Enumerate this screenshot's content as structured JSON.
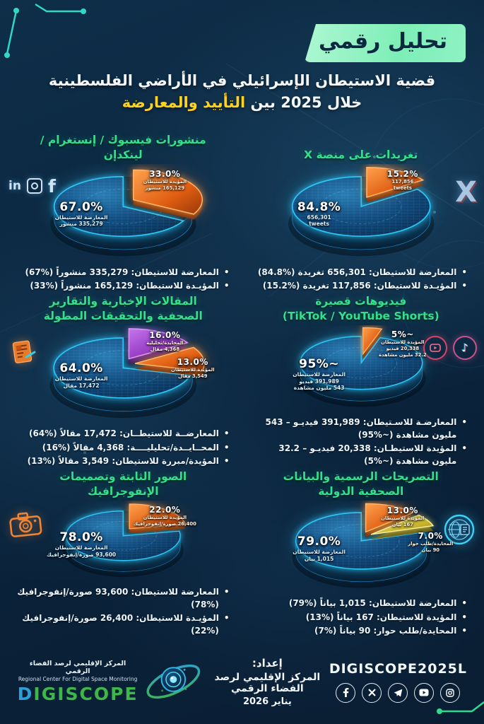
{
  "header": {
    "badge": "تحليل رقمي",
    "title_line1": "قضية الاستيطان الإسرائيلي في الأراضي الفلسطينية",
    "title_line2_prefix": "خلال 2025 بين ",
    "title_line2_highlight": "التأييد والمعارضة"
  },
  "colors": {
    "background": "#0d2b44",
    "accent_green": "#35e08d",
    "highlight_yellow": "#ffd21f",
    "pie_blue": "#2ec5f5",
    "pie_orange": "#ff8a2e",
    "pie_purple": "#b55ce6",
    "pie_yellow": "#e9de52"
  },
  "chart_data": [
    {
      "id": "x-tweets",
      "type": "pie",
      "title": "تغريدات على منصة X",
      "icon": "x-icon",
      "slices": [
        {
          "name": "المعارضة للاستيطان",
          "value": 656301,
          "pct": 84.8,
          "color": "blue",
          "label": "84.8%",
          "lines": [
            "656,301",
            "tweets"
          ]
        },
        {
          "name": "المؤيدة للاستيطان",
          "value": 117856,
          "pct": 15.2,
          "color": "orange",
          "label": "15.2%",
          "lines": [
            "117,856",
            "tweets"
          ]
        }
      ],
      "bullets": [
        "المعارضة للاستيطان: 656,301 تغريدة (%84.8)",
        "المؤيـدة للاستيطان: 117,856 تغريدة (%15.2)"
      ]
    },
    {
      "id": "social-posts",
      "type": "pie",
      "title": "منشورات فيسبوك / إنستغرام /",
      "title2": "لينكدإن",
      "icon": "facebook-instagram-linkedin-icons",
      "slices": [
        {
          "name": "المعارضة للاستيطان",
          "value": 335279,
          "pct": 67,
          "color": "blue",
          "label": "67.0%",
          "lines": [
            "المعارضة للاستيطان",
            "335,279 منشور"
          ]
        },
        {
          "name": "المؤيدة للاستيطان",
          "value": 165129,
          "pct": 33,
          "color": "orange",
          "label": "33.0%",
          "lines": [
            "المؤيدة للاستيطان",
            "165,129 منشور"
          ]
        }
      ],
      "bullets": [
        "المعارضة للاستيطان: 335,279 منشوراً (%67)",
        "المؤيـدة للاستيطان: 165,129 منشوراً (%33)"
      ]
    },
    {
      "id": "short-videos",
      "type": "pie",
      "title": "فيديوهات قصيرة",
      "title2": "(TikTok / YouTube Shorts)",
      "icon": "tiktok-youtube-icons",
      "slices": [
        {
          "name": "المعارضة للاستيطان",
          "value": 391989,
          "pct": 95,
          "color": "blue",
          "label": "~95%",
          "lines": [
            "المعارضة للاستيطان",
            "391,989 فيديو",
            "543 مليون مشاهدة"
          ]
        },
        {
          "name": "المؤيدة للاستيطان",
          "value": 20338,
          "pct": 5,
          "color": "orange",
          "label": "~5%",
          "lines": [
            "المؤيدة للاستيطان",
            "20,338 فيديو",
            "32.2 مليون مشاهدة"
          ]
        }
      ],
      "bullets": [
        "المعارضـة للاسـتيطان: 391,989 فيديـو – 543 مليون مشاهدة (~%95)",
        "المؤيدة للاستيطـان: 20,338 فيديـو – 32.2 مليون مشاهدة (~%5)"
      ]
    },
    {
      "id": "news-articles",
      "type": "pie",
      "title": "المقالات الإخبارية والتقارير",
      "title2": "الصحفية والتحقيقات المطولة",
      "icon": "news-article-icon",
      "slices": [
        {
          "name": "المعارضة للاستيطان",
          "value": 17472,
          "pct": 64,
          "color": "blue",
          "label": "64.0%",
          "lines": [
            "المعارضة للاستيطان",
            "17,472 مقال"
          ]
        },
        {
          "name": "المحايدة/تحليلية",
          "value": 4368,
          "pct": 16,
          "color": "purple",
          "label": "16.0%",
          "lines": [
            "المحايدة/تحليلية",
            "4,368 مقال"
          ]
        },
        {
          "name": "المؤيدة للاستيطان",
          "value": 3549,
          "pct": 13,
          "color": "orange",
          "label": "13.0%",
          "lines": [
            "المؤيدة للاستيطان",
            "3,549 مقال"
          ]
        }
      ],
      "bullets": [
        "المعارضــة للاستيطــان: 17,472 مقالاً (%64)",
        "المحــايــدة/تحليليــــة: 4,368 مقالاً (%16)",
        "المؤيدة/مبررة للاستيطان: 3,549 مقالاً (%13)"
      ]
    },
    {
      "id": "official-statements",
      "type": "pie",
      "title": "التصريحات الرسمية والبيانات",
      "title2": "الصحفية الدولية",
      "icon": "globe-press-icon",
      "slices": [
        {
          "name": "المعارضة للاستيطان",
          "value": 1015,
          "pct": 79,
          "color": "blue",
          "label": "79.0%",
          "lines": [
            "المعارضة للاستيطان",
            "1,015 بيان"
          ]
        },
        {
          "name": "المؤيدة للاستيطان",
          "value": 167,
          "pct": 13,
          "color": "orange",
          "label": "13.0%",
          "lines": [
            "المؤيدة للاستيطان",
            "167 بيان"
          ]
        },
        {
          "name": "المحايدة/طلب حوار",
          "value": 90,
          "pct": 7,
          "color": "yellow",
          "label": "7.0%",
          "lines": [
            "المحايدة/طلب حوار",
            "90 بيان"
          ]
        }
      ],
      "bullets": [
        "المعارضة للاستيطان: 1,015 بياناً (%79)",
        "المؤيدة للاستيطان: 167 بياناً (%13)",
        "المحايدة/طلب حوار: 90 بياناً (%7)"
      ]
    },
    {
      "id": "images-infographics",
      "type": "pie",
      "title": "الصور الثابتة وتصميمات",
      "title2": "الإنفوجرافيك",
      "icon": "camera-icon",
      "slices": [
        {
          "name": "المعارضة للاستيطان",
          "value": 93600,
          "pct": 78,
          "color": "blue",
          "label": "78.0%",
          "lines": [
            "المعارضة للاستيطان",
            "93,600 صورة/إنفوجرافيك"
          ]
        },
        {
          "name": "المؤيدة للاستيطان",
          "value": 26400,
          "pct": 22,
          "color": "orange",
          "label": "22.0%",
          "lines": [
            "المؤيدة للاستيطان",
            "26,400 صورة/إنفوجرافيك"
          ]
        }
      ],
      "bullets": [
        "المعارضة للاستيطان: 93,600 صورة/إنفوجرافيك (%78)",
        "المؤيـدة للاستيطان: 26,400 صورة/إنفوجرافيك (%22)"
      ]
    }
  ],
  "footer": {
    "logo": {
      "title_ar": "المركز الإقليمي لرصد الفضاء الرقمي",
      "title_en": "Regional Center For Digital Space Monitoring",
      "brand": "DIGISCOPE"
    },
    "prepared": {
      "label": "إعداد:",
      "org": "المركز الإقليمي لرصد الفضاء الرقمي",
      "date": "يناير 2026"
    },
    "handle": "DIGISCOPE2025L",
    "socials": [
      "facebook-icon",
      "x-icon",
      "telegram-icon",
      "youtube-icon",
      "instagram-icon"
    ]
  }
}
